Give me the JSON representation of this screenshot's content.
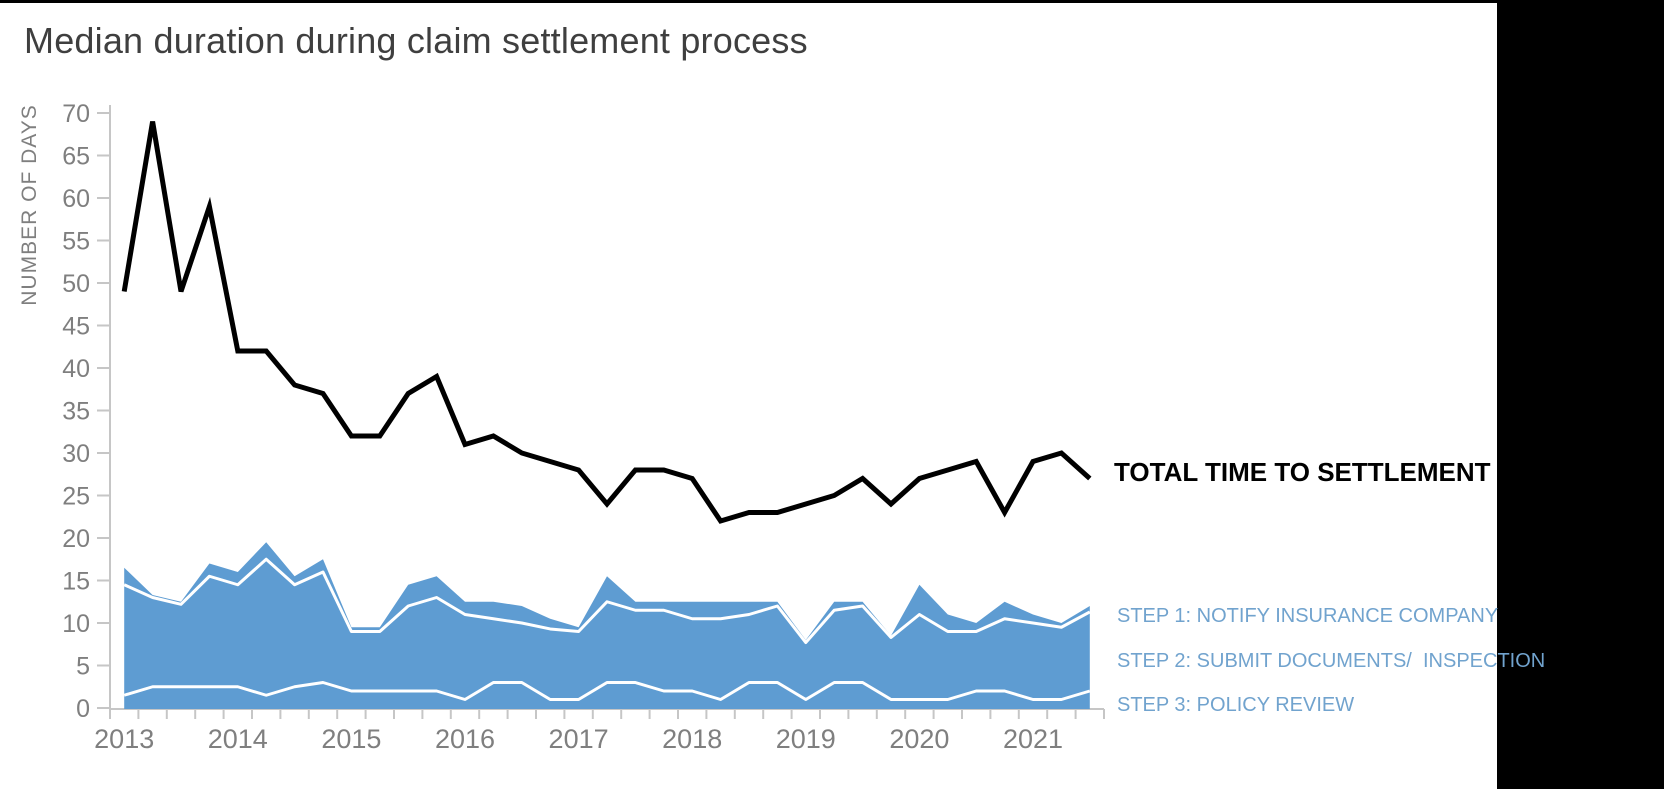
{
  "header": {
    "title": "Median duration during claim settlement process"
  },
  "legend": {
    "total": "TOTAL TIME TO SETTLEMENT",
    "step1": "STEP 1: NOTIFY INSURANCE COMPANY",
    "step2": "STEP 2: SUBMIT DOCUMENTS/  INSPECTION",
    "step3": "STEP 3: POLICY REVIEW"
  },
  "chart_data": {
    "type": "area",
    "subtype": "stacked-area-with-total-line",
    "title": "Median duration during claim settlement process",
    "xlabel": "",
    "ylabel": "NUMBER OF DAYS",
    "ylim": [
      0,
      70
    ],
    "y_ticks": [
      0,
      5,
      10,
      15,
      20,
      25,
      30,
      35,
      40,
      45,
      50,
      55,
      60,
      65,
      70
    ],
    "years": [
      2013,
      2014,
      2015,
      2016,
      2017,
      2018,
      2019,
      2020,
      2021
    ],
    "grid": false,
    "legend_position": "right-of-plot",
    "quarters": [
      "2013 Q1",
      "2013 Q2",
      "2013 Q3",
      "2013 Q4",
      "2014 Q1",
      "2014 Q2",
      "2014 Q3",
      "2014 Q4",
      "2015 Q1",
      "2015 Q2",
      "2015 Q3",
      "2015 Q4",
      "2016 Q1",
      "2016 Q2",
      "2016 Q3",
      "2016 Q4",
      "2017 Q1",
      "2017 Q2",
      "2017 Q3",
      "2017 Q4",
      "2018 Q1",
      "2018 Q2",
      "2018 Q3",
      "2018 Q4",
      "2019 Q1",
      "2019 Q2",
      "2019 Q3",
      "2019 Q4",
      "2020 Q1",
      "2020 Q2",
      "2020 Q3",
      "2020 Q4",
      "2021 Q1",
      "2021 Q2",
      "2021 Q3"
    ],
    "stack_order_bottom_to_top": [
      "step3",
      "step2",
      "step1"
    ],
    "series": [
      {
        "name": "TOTAL TIME TO SETTLEMENT",
        "role": "line",
        "color": "#000000",
        "values": [
          49,
          69,
          49,
          59,
          42,
          42,
          38,
          37,
          32,
          32,
          37,
          39,
          31,
          32,
          30,
          29,
          28,
          24,
          28,
          28,
          27,
          22,
          23,
          23,
          24,
          25,
          27,
          24,
          27,
          28,
          29,
          23,
          29,
          30,
          27
        ]
      },
      {
        "name": "STEP 1: NOTIFY INSURANCE COMPANY",
        "role": "stacked-area-top",
        "color": "#5e9cd2",
        "values": [
          2,
          0.3,
          0.3,
          1.5,
          1.5,
          2,
          1,
          1.5,
          0.5,
          0.5,
          2.5,
          2.5,
          1.5,
          2,
          2,
          1.2,
          0.5,
          3,
          1,
          1,
          2,
          2,
          1.5,
          0.5,
          0.3,
          1,
          0.5,
          0.2,
          3.5,
          2,
          1,
          2,
          1,
          0.5,
          0.7
        ]
      },
      {
        "name": "STEP 2: SUBMIT DOCUMENTS/ INSPECTION",
        "role": "stacked-area-middle",
        "color": "#5e9cd2",
        "values": [
          13,
          10.5,
          9.7,
          13,
          12,
          16,
          12,
          13,
          7,
          7,
          10,
          11,
          10,
          7.5,
          7,
          8.3,
          8,
          9.5,
          8.5,
          9.5,
          8.5,
          9.5,
          8,
          9,
          6.7,
          8.5,
          9,
          7.3,
          10,
          8,
          7,
          8.5,
          9,
          8.5,
          9.3
        ]
      },
      {
        "name": "STEP 3: POLICY REVIEW",
        "role": "stacked-area-bottom",
        "color": "#5e9cd2",
        "values": [
          1.5,
          2.5,
          2.5,
          2.5,
          2.5,
          1.5,
          2.5,
          3,
          2,
          2,
          2,
          2,
          1,
          3,
          3,
          1,
          1,
          3,
          3,
          2,
          2,
          1,
          3,
          3,
          1,
          3,
          3,
          1,
          1,
          1,
          2,
          2,
          1,
          1,
          2
        ]
      }
    ],
    "colors": {
      "area_fill": "#5e9cd2",
      "separator_lines": "#ffffff",
      "total_line": "#000000",
      "axis_line": "#c6c6c6",
      "tick_text": "#7f7f7f",
      "title_text": "#3f3f3f",
      "legend_step_text": "#71a3ce",
      "right_band": "#000000"
    }
  },
  "layout_values": {
    "right_band_left_px": "1497"
  }
}
